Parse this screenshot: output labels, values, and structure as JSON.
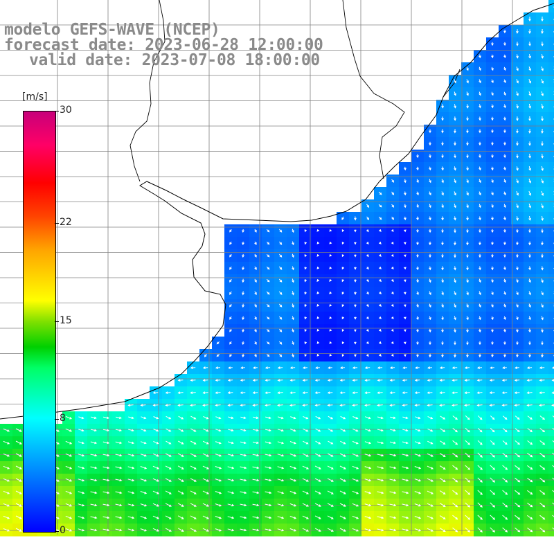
{
  "title": {
    "line1": "modelo GEFS-WAVE (NCEP)",
    "line2": "forecast date: 2023-06-28 12:00:00",
    "line3": "valid date: 2023-07-08 18:00:00"
  },
  "colorbar": {
    "unit": "[m/s]",
    "min": 0,
    "max": 30,
    "ticks": [
      {
        "value": 0,
        "label": "0"
      },
      {
        "value": 8,
        "label": "8"
      },
      {
        "value": 15,
        "label": "15"
      },
      {
        "value": 22,
        "label": "22"
      },
      {
        "value": 30,
        "label": "30"
      }
    ]
  },
  "colors": {
    "land": "#ffffff",
    "coast": "#000000",
    "grid": "#808080",
    "arrow": "#ffffff"
  },
  "map_info": {
    "field": "wind speed",
    "arrows": "white wind direction vectors"
  }
}
